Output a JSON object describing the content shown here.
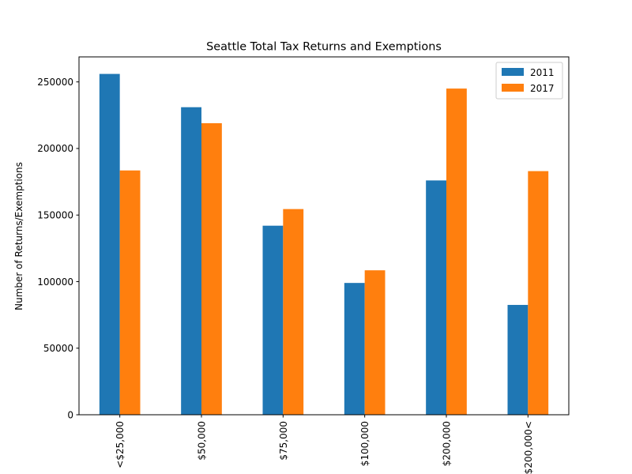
{
  "chart_data": {
    "type": "bar",
    "title": "Seattle Total Tax Returns and Exemptions",
    "xlabel": "",
    "ylabel": "Number of Returns/Exemptions",
    "categories": [
      "<$25,000",
      "$50,000",
      "$75,000",
      "$100,000",
      "$200,000",
      "$200,000<"
    ],
    "series": [
      {
        "name": "2011",
        "color": "#1f77b4",
        "values": [
          256000,
          231000,
          142000,
          99000,
          176000,
          82500
        ]
      },
      {
        "name": "2017",
        "color": "#ff7f0e",
        "values": [
          183500,
          219000,
          154500,
          108500,
          245000,
          183000
        ]
      }
    ],
    "ylim": [
      0,
      268800
    ],
    "yticks": [
      0,
      50000,
      100000,
      150000,
      200000,
      250000
    ],
    "ytick_labels": [
      "0",
      "50000",
      "100000",
      "150000",
      "200000",
      "250000"
    ],
    "grid": false,
    "legend_position": "top-right"
  }
}
